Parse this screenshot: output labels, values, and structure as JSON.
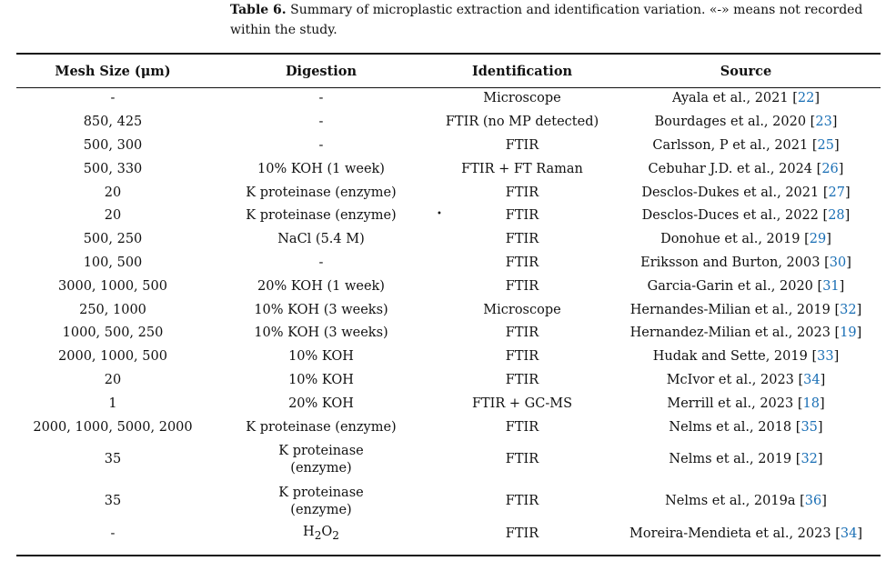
{
  "caption": {
    "label": "Table 6.",
    "text": "Summary of microplastic extraction and identification variation. «-» means not recorded within the study."
  },
  "table": {
    "headers": [
      "Mesh Size (μm)",
      "Digestion",
      "Identification",
      "Source"
    ],
    "rows": [
      {
        "mesh": "-",
        "digestion": "-",
        "identification": "Microscope",
        "source": "Ayala et al., 2021",
        "ref": "22"
      },
      {
        "mesh": "850, 425",
        "digestion": "-",
        "identification": "FTIR (no MP detected)",
        "source": "Bourdages et al., 2020",
        "ref": "23"
      },
      {
        "mesh": "500, 300",
        "digestion": "-",
        "identification": "FTIR",
        "source": "Carlsson, P et al., 2021",
        "ref": "25"
      },
      {
        "mesh": "500, 330",
        "digestion": "10% KOH (1 week)",
        "identification": "FTIR + FT Raman",
        "source": "Cebuhar J.D. et al., 2024",
        "ref": "26"
      },
      {
        "mesh": "20",
        "digestion": "K proteinase (enzyme)",
        "identification": "FTIR",
        "source": "Desclos-Dukes et al., 2021",
        "ref": "27"
      },
      {
        "mesh": "20",
        "digestion": "K proteinase (enzyme)",
        "identification": "FTIR",
        "source": "Desclos-Duces et al., 2022",
        "ref": "28"
      },
      {
        "mesh": "500, 250",
        "digestion": "NaCl (5.4 M)",
        "identification": "FTIR",
        "source": "Donohue et al., 2019",
        "ref": "29"
      },
      {
        "mesh": "100, 500",
        "digestion": "-",
        "identification": "FTIR",
        "source": "Eriksson and Burton, 2003",
        "ref": "30"
      },
      {
        "mesh": "3000, 1000, 500",
        "digestion": "20% KOH (1 week)",
        "identification": "FTIR",
        "source": "Garcia-Garin et al., 2020",
        "ref": "31"
      },
      {
        "mesh": "250, 1000",
        "digestion": "10% KOH (3 weeks)",
        "identification": "Microscope",
        "source": "Hernandes-Milian et al., 2019",
        "ref": "32"
      },
      {
        "mesh": "1000, 500, 250",
        "digestion": "10% KOH (3 weeks)",
        "identification": "FTIR",
        "source": "Hernandez-Milian et al., 2023",
        "ref": "19"
      },
      {
        "mesh": "2000, 1000, 500",
        "digestion": "10% KOH",
        "identification": "FTIR",
        "source": "Hudak and Sette, 2019",
        "ref": "33"
      },
      {
        "mesh": "20",
        "digestion": "10% KOH",
        "identification": "FTIR",
        "source": "McIvor et al., 2023",
        "ref": "34"
      },
      {
        "mesh": "1",
        "digestion": "20% KOH",
        "identification": "FTIR + GC-MS",
        "source": "Merrill et al., 2023",
        "ref": "18"
      },
      {
        "mesh": "2000, 1000, 5000, 2000",
        "digestion": "K proteinase (enzyme)",
        "identification": "FTIR",
        "source": "Nelms et al., 2018",
        "ref": "35"
      },
      {
        "mesh": "35",
        "digestion_line1": "K proteinase",
        "digestion_line2": "(enzyme)",
        "identification": "FTIR",
        "source": "Nelms et al., 2019",
        "ref": "32"
      },
      {
        "mesh": "35",
        "digestion_line1": "K proteinase",
        "digestion_line2": "(enzyme)",
        "identification": "FTIR",
        "source": "Nelms et al., 2019a",
        "ref": "36"
      },
      {
        "mesh": "-",
        "digestion_chem": "H",
        "digestion_sub1": "2",
        "digestion_mid": "O",
        "digestion_sub2": "2",
        "identification": "FTIR",
        "source": "Moreira-Mendieta et al., 2023",
        "ref": "34"
      }
    ]
  }
}
